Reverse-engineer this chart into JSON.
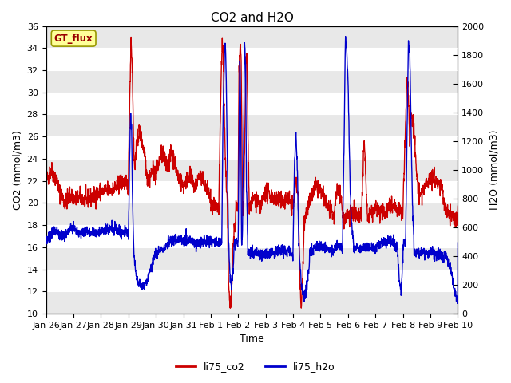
{
  "title": "CO2 and H2O",
  "xlabel": "Time",
  "ylabel_left": "CO2 (mmol/m3)",
  "ylabel_right": "H2O (mmol/m3)",
  "ylim_left": [
    10,
    36
  ],
  "ylim_right": [
    0,
    2000
  ],
  "yticks_left": [
    10,
    12,
    14,
    16,
    18,
    20,
    22,
    24,
    26,
    28,
    30,
    32,
    34,
    36
  ],
  "yticks_right": [
    0,
    200,
    400,
    600,
    800,
    1000,
    1200,
    1400,
    1600,
    1800,
    2000
  ],
  "xtick_labels": [
    "Jan 26",
    "Jan 27",
    "Jan 28",
    "Jan 29",
    "Jan 30",
    "Jan 31",
    "Feb 1",
    "Feb 2",
    "Feb 3",
    "Feb 4",
    "Feb 5",
    "Feb 6",
    "Feb 7",
    "Feb 8",
    "Feb 9",
    "Feb 10"
  ],
  "legend_labels": [
    "li75_co2",
    "li75_h2o"
  ],
  "line_color_co2": "#cc0000",
  "line_color_h2o": "#0000cc",
  "annotation_text": "GT_flux",
  "annotation_text_color": "#990000",
  "annotation_bg": "#ffff99",
  "annotation_edge": "#999900",
  "bg_color": "#ffffff",
  "band_color": "#e8e8e8",
  "line_width": 1.0,
  "title_fontsize": 11,
  "axis_label_fontsize": 9,
  "tick_fontsize": 8
}
